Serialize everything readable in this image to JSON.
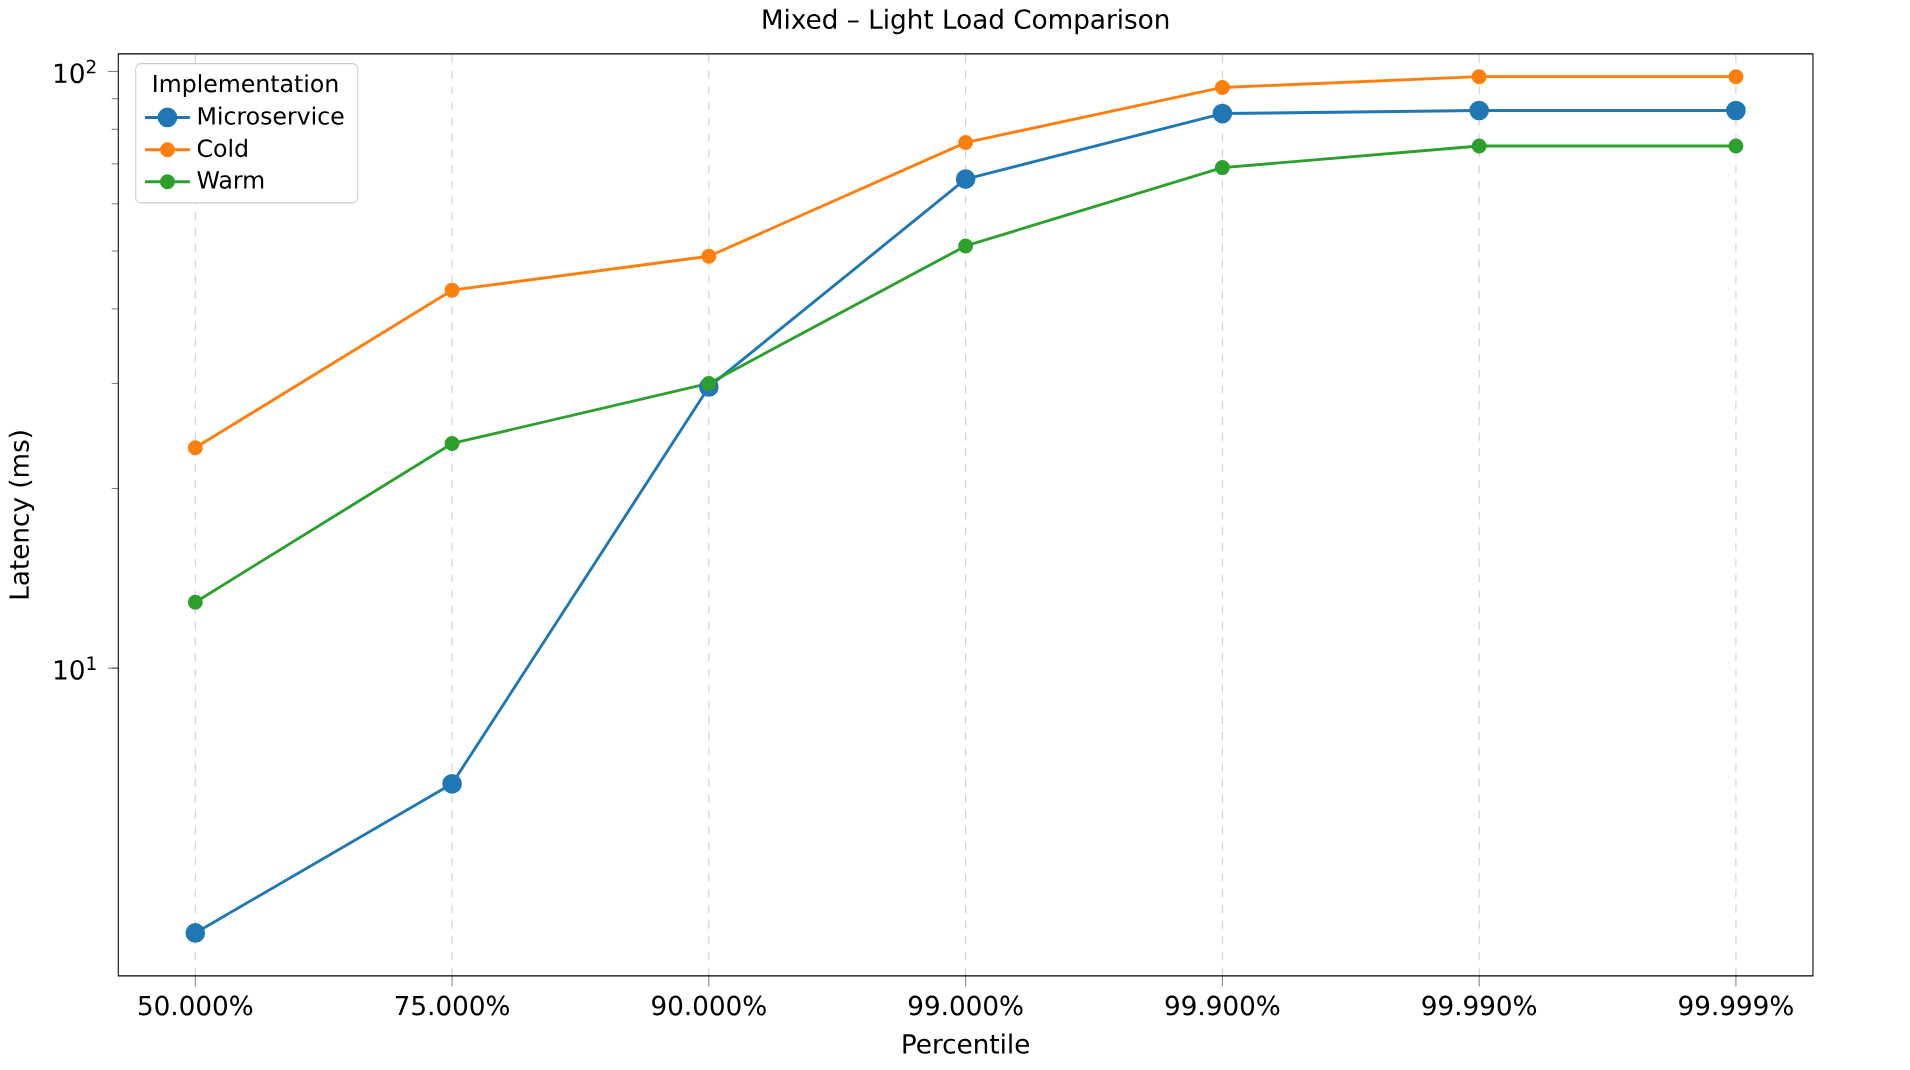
{
  "chart_data": {
    "type": "line",
    "title": "Mixed – Light Load Comparison",
    "xlabel": "Percentile",
    "ylabel": "Latency (ms)",
    "legend_title": "Implementation",
    "categories": [
      "50.000%",
      "75.000%",
      "90.000%",
      "99.000%",
      "99.900%",
      "99.990%",
      "99.999%"
    ],
    "series": [
      {
        "name": "Microservice",
        "color": "#1f77b4",
        "values": [
          3.6,
          6.4,
          29.6,
          66,
          85,
          86,
          86
        ]
      },
      {
        "name": "Cold",
        "color": "#ff7f0e",
        "values": [
          23.4,
          43,
          49,
          76,
          94,
          98,
          98
        ]
      },
      {
        "name": "Warm",
        "color": "#2ca02c",
        "values": [
          12.9,
          23.8,
          30,
          51,
          69,
          75,
          75
        ]
      }
    ],
    "log": "y",
    "ylim": [
      3.05,
      107
    ],
    "yticks": [
      {
        "value": 10,
        "label": "10$^{1}$"
      },
      {
        "value": 100,
        "label": "10$^{2}$"
      }
    ],
    "grid": "x",
    "legend": "top left",
    "marker": "circle",
    "line_style": "solid"
  }
}
